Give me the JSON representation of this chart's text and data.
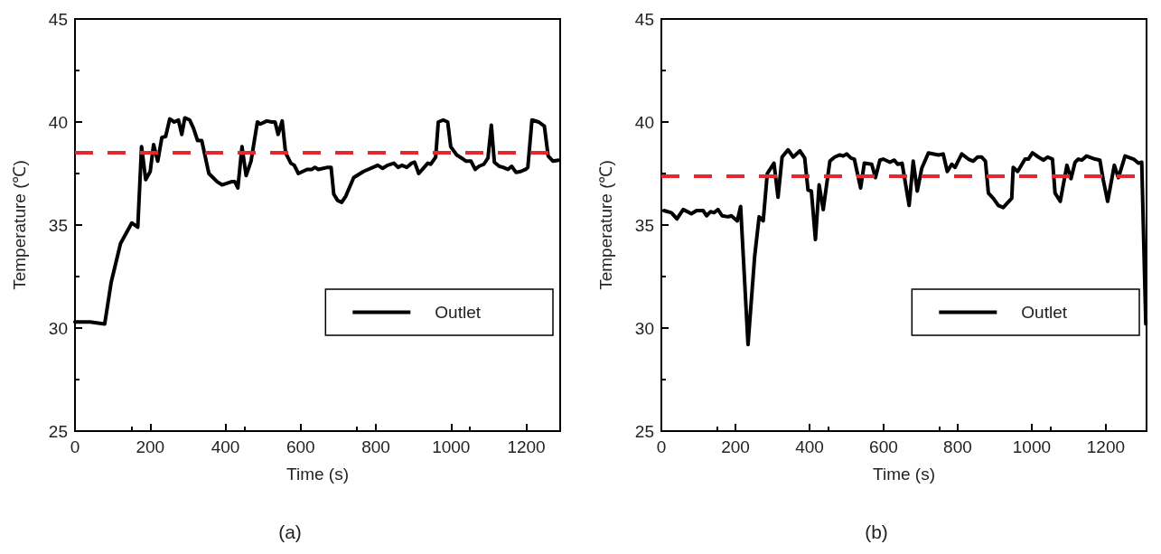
{
  "chart_data": [
    {
      "type": "line",
      "xlabel": "Time (s)",
      "ylabel": "Temperature (℃)",
      "annotations": [
        "(a)"
      ],
      "xlim": [
        0,
        1290
      ],
      "ylim": [
        25,
        45
      ],
      "xticks": [
        0,
        200,
        400,
        600,
        800,
        1000,
        1200
      ],
      "yticks": [
        25,
        30,
        35,
        40,
        45
      ],
      "grid": false,
      "legend": "right",
      "marker": "none",
      "line_style": "solid",
      "ref_lines": [
        {
          "axis": "y",
          "value": 38.5,
          "color": "#e8262b",
          "line_style": "dashed"
        }
      ],
      "series": [
        {
          "name": "Outlet",
          "color": "#000000",
          "x": [
            0,
            40,
            79,
            96,
            121,
            151,
            167,
            177,
            188,
            200,
            209,
            220,
            231,
            241,
            252,
            264,
            275,
            284,
            292,
            305,
            315,
            326,
            337,
            356,
            378,
            391,
            416,
            425,
            433,
            444,
            455,
            468,
            485,
            493,
            510,
            523,
            532,
            540,
            551,
            560,
            574,
            583,
            594,
            617,
            630,
            638,
            647,
            672,
            681,
            688,
            698,
            709,
            720,
            741,
            767,
            805,
            818,
            831,
            848,
            859,
            869,
            882,
            895,
            903,
            914,
            938,
            946,
            959,
            966,
            979,
            991,
            999,
            1015,
            1032,
            1040,
            1053,
            1064,
            1074,
            1087,
            1098,
            1107,
            1115,
            1128,
            1138,
            1151,
            1161,
            1173,
            1185,
            1198,
            1204,
            1215,
            1233,
            1248,
            1258,
            1271,
            1286
          ],
          "values": [
            30.3,
            30.3,
            30.2,
            32.2,
            34.1,
            35.1,
            34.9,
            38.8,
            37.2,
            37.6,
            38.9,
            38.1,
            39.25,
            39.3,
            40.15,
            40.0,
            40.1,
            39.4,
            40.2,
            40.1,
            39.7,
            39.1,
            39.1,
            37.5,
            37.1,
            36.95,
            37.1,
            37.1,
            36.8,
            38.8,
            37.4,
            38.1,
            40.0,
            39.9,
            40.05,
            40.0,
            40.0,
            39.4,
            40.05,
            38.5,
            38.0,
            37.9,
            37.5,
            37.7,
            37.7,
            37.8,
            37.7,
            37.8,
            37.8,
            36.5,
            36.2,
            36.1,
            36.4,
            37.3,
            37.6,
            37.9,
            37.75,
            37.9,
            38.0,
            37.8,
            37.9,
            37.8,
            38.0,
            38.05,
            37.5,
            38.0,
            37.95,
            38.3,
            40.0,
            40.1,
            40.0,
            38.8,
            38.4,
            38.2,
            38.1,
            38.1,
            37.7,
            37.85,
            37.95,
            38.25,
            39.85,
            38.05,
            37.85,
            37.8,
            37.7,
            37.85,
            37.55,
            37.6,
            37.7,
            37.8,
            40.1,
            40.0,
            39.8,
            38.35,
            38.1,
            38.15
          ]
        }
      ]
    },
    {
      "type": "line",
      "xlabel": "Time (s)",
      "ylabel": "Temperature (℃)",
      "annotations": [
        "(b)"
      ],
      "xlim": [
        0,
        1310
      ],
      "ylim": [
        25,
        45
      ],
      "xticks": [
        0,
        200,
        400,
        600,
        800,
        1000,
        1200
      ],
      "yticks": [
        25,
        30,
        35,
        40,
        45
      ],
      "grid": false,
      "legend": "right",
      "marker": "none",
      "line_style": "solid",
      "ref_lines": [
        {
          "axis": "y",
          "value": 37.4,
          "color": "#e8262b",
          "line_style": "dashed"
        }
      ],
      "series": [
        {
          "name": "Outlet",
          "color": "#000000",
          "x": [
            7,
            27,
            42,
            59,
            81,
            95,
            113,
            122,
            133,
            142,
            153,
            164,
            180,
            189,
            205,
            214,
            234,
            252,
            264,
            275,
            286,
            304,
            315,
            326,
            342,
            356,
            374,
            387,
            396,
            405,
            416,
            426,
            437,
            455,
            468,
            482,
            491,
            500,
            512,
            521,
            538,
            548,
            568,
            578,
            590,
            599,
            617,
            629,
            638,
            650,
            669,
            680,
            691,
            703,
            721,
            748,
            761,
            772,
            784,
            793,
            811,
            829,
            842,
            854,
            865,
            875,
            883,
            896,
            910,
            923,
            946,
            950,
            962,
            982,
            991,
            1002,
            1018,
            1032,
            1043,
            1056,
            1063,
            1077,
            1095,
            1106,
            1117,
            1126,
            1135,
            1148,
            1171,
            1184,
            1193,
            1205,
            1223,
            1234,
            1252,
            1275,
            1288,
            1297,
            1308
          ],
          "values": [
            35.7,
            35.6,
            35.3,
            35.75,
            35.55,
            35.7,
            35.7,
            35.45,
            35.65,
            35.6,
            35.75,
            35.45,
            35.4,
            35.45,
            35.2,
            35.9,
            29.2,
            33.5,
            35.4,
            35.2,
            37.5,
            38.0,
            36.35,
            38.3,
            38.65,
            38.3,
            38.6,
            38.25,
            36.7,
            36.65,
            34.3,
            36.95,
            35.75,
            38.1,
            38.3,
            38.4,
            38.35,
            38.45,
            38.25,
            38.2,
            36.8,
            38.0,
            37.95,
            37.3,
            38.15,
            38.2,
            38.05,
            38.15,
            37.95,
            38.0,
            35.95,
            38.1,
            36.65,
            37.75,
            38.5,
            38.4,
            38.45,
            37.6,
            37.95,
            37.8,
            38.45,
            38.2,
            38.1,
            38.3,
            38.3,
            38.1,
            36.55,
            36.3,
            35.95,
            35.85,
            36.3,
            37.8,
            37.6,
            38.2,
            38.2,
            38.5,
            38.3,
            38.15,
            38.3,
            38.2,
            36.55,
            36.15,
            37.9,
            37.25,
            38.05,
            38.2,
            38.15,
            38.35,
            38.2,
            38.15,
            37.2,
            36.15,
            37.9,
            37.3,
            38.35,
            38.2,
            38.0,
            38.05,
            30.2
          ]
        }
      ]
    }
  ]
}
